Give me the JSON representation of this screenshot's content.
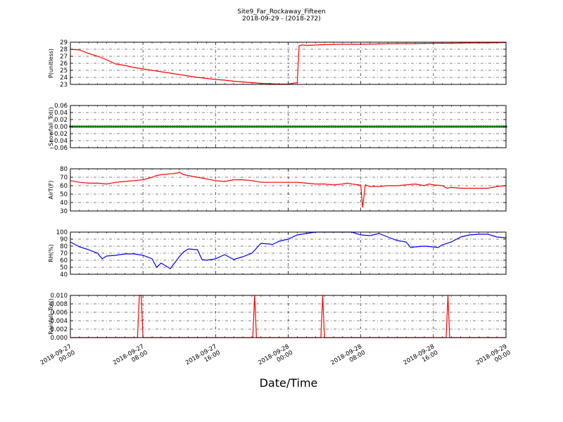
{
  "chart_data": {
    "type": "line",
    "title": "Site9_Far_Rockaway_Fifteen",
    "subtitle": "2018-09-29 - (2018-272)",
    "xlabel": "Date/Time",
    "x_range": [
      "2018-09-27 00:00",
      "2018-09-29 00:00"
    ],
    "x_ticks": [
      {
        "line1": "2018-09-27",
        "line2": "00:00",
        "hour": 0
      },
      {
        "line1": "2018-09-27",
        "line2": "08:00",
        "hour": 8
      },
      {
        "line1": "2018-09-27",
        "line2": "16:00",
        "hour": 16
      },
      {
        "line1": "2018-09-28",
        "line2": "00:00",
        "hour": 24
      },
      {
        "line1": "2018-09-28",
        "line2": "08:00",
        "hour": 32
      },
      {
        "line1": "2018-09-28",
        "line2": "16:00",
        "hour": 40
      },
      {
        "line1": "2018-09-29",
        "line2": "00:00",
        "hour": 48
      }
    ],
    "grid": true,
    "panels": [
      {
        "ylabel": "P(unitless)",
        "color": "#ff0000",
        "ylim": [
          23,
          29
        ],
        "yticks": [
          "23",
          "24",
          "25",
          "26",
          "27",
          "28",
          "29"
        ],
        "ytick_values": [
          23,
          24,
          25,
          26,
          27,
          28,
          29
        ],
        "hours": [
          0,
          1,
          2,
          3,
          4,
          5,
          6,
          7,
          8,
          9,
          10,
          11,
          12,
          13,
          14,
          15,
          16,
          17,
          18,
          19,
          20,
          21,
          22,
          23,
          24,
          25,
          25.2,
          25.5,
          25.7,
          26,
          28,
          30,
          32,
          34,
          36,
          38,
          40,
          42,
          44,
          46,
          48
        ],
        "values": [
          28.0,
          27.9,
          27.4,
          27.0,
          26.5,
          25.9,
          25.7,
          25.4,
          25.2,
          25.0,
          24.8,
          24.6,
          24.4,
          24.2,
          24.0,
          23.85,
          23.7,
          23.6,
          23.45,
          23.35,
          23.25,
          23.15,
          23.1,
          23.05,
          23.05,
          23.25,
          28.5,
          28.6,
          28.6,
          28.55,
          28.65,
          28.7,
          28.7,
          28.75,
          28.8,
          28.8,
          28.85,
          28.85,
          28.9,
          28.9,
          28.95
        ]
      },
      {
        "ylabel": "Snowfall_Tot()",
        "color": "#008000",
        "ylim": [
          -0.06,
          0.06
        ],
        "yticks": [
          "−0.06",
          "−0.04",
          "−0.02",
          "0.00",
          "0.02",
          "0.04",
          "0.06"
        ],
        "ytick_values": [
          -0.06,
          -0.04,
          -0.02,
          0,
          0.02,
          0.04,
          0.06
        ],
        "hours": [
          0,
          48
        ],
        "values": [
          0,
          0
        ],
        "marker": "dots"
      },
      {
        "ylabel": "AirT(F)",
        "color": "#ff0000",
        "ylim": [
          30,
          80
        ],
        "yticks": [
          "30",
          "40",
          "50",
          "60",
          "70",
          "80"
        ],
        "ytick_values": [
          30,
          40,
          50,
          60,
          70,
          80
        ],
        "hours": [
          0,
          1,
          2,
          3,
          4,
          5,
          6,
          7,
          8,
          9,
          9.5,
          10,
          11,
          11.8,
          12,
          12.5,
          13,
          14,
          15,
          16,
          17,
          18,
          19,
          20,
          21,
          22,
          23,
          24,
          25,
          26,
          27,
          28,
          29,
          30,
          30.5,
          31,
          31.8,
          32,
          32.2,
          32.5,
          33,
          34,
          35,
          36,
          37,
          38,
          39,
          39.5,
          40,
          41,
          41.5,
          42,
          43,
          44,
          45,
          46,
          47,
          48
        ],
        "values": [
          66,
          64,
          63,
          63,
          62,
          64,
          65,
          66,
          67,
          70,
          72,
          73,
          74,
          75,
          76,
          73,
          72,
          70,
          68,
          66,
          65,
          67,
          67,
          66,
          64,
          64,
          64,
          64,
          64,
          63,
          62,
          62,
          61,
          62,
          63,
          62,
          61,
          60,
          34,
          61,
          59,
          59,
          60,
          60,
          61,
          62,
          60,
          62,
          61,
          60,
          57,
          58,
          57,
          57,
          57,
          57,
          59,
          60
        ]
      },
      {
        "ylabel": "RH(%)",
        "color": "#0000ff",
        "ylim": [
          40,
          100
        ],
        "yticks": [
          "40",
          "50",
          "60",
          "70",
          "80",
          "90",
          "100"
        ],
        "ytick_values": [
          40,
          50,
          60,
          70,
          80,
          90,
          100
        ],
        "hours": [
          0,
          1,
          2,
          3,
          3.5,
          4,
          5,
          6,
          7,
          8,
          9,
          9.5,
          10,
          11,
          12,
          12.5,
          13,
          14,
          14.5,
          15,
          16,
          17,
          18,
          19,
          20,
          21,
          22,
          22.2,
          23,
          24,
          25,
          26,
          27,
          28,
          29,
          30,
          31,
          32,
          33,
          34,
          35,
          36,
          37,
          37.5,
          38,
          39,
          40,
          40.5,
          41,
          42,
          43,
          44,
          45,
          46,
          47,
          48
        ],
        "values": [
          86,
          79,
          75,
          70,
          62,
          66,
          67,
          69,
          69,
          67,
          62,
          50,
          56,
          48,
          65,
          72,
          76,
          75,
          61,
          60,
          62,
          68,
          61,
          65,
          70,
          84,
          83,
          82,
          87,
          90,
          96,
          98,
          100,
          100,
          100,
          100,
          100,
          96,
          95,
          98,
          93,
          88,
          86,
          78,
          79,
          80,
          79,
          78,
          82,
          86,
          93,
          96,
          97,
          97,
          93,
          92
        ]
      },
      {
        "ylabel": "Rainfall_Tot()",
        "color": "#ff0000",
        "ylim": [
          0,
          0.01
        ],
        "yticks": [
          "0.000",
          "0.002",
          "0.004",
          "0.006",
          "0.008",
          "0.010"
        ],
        "ytick_values": [
          0,
          0.002,
          0.004,
          0.006,
          0.008,
          0.01
        ],
        "hours": [
          0,
          7.4,
          7.6,
          7.8,
          8.0,
          20.1,
          20.3,
          20.5,
          27.6,
          27.8,
          28.0,
          41.4,
          41.6,
          41.8,
          48
        ],
        "values": [
          0,
          0,
          0.01,
          0.01,
          0,
          0,
          0.01,
          0,
          0,
          0.01,
          0,
          0,
          0.01,
          0,
          0
        ]
      }
    ]
  }
}
